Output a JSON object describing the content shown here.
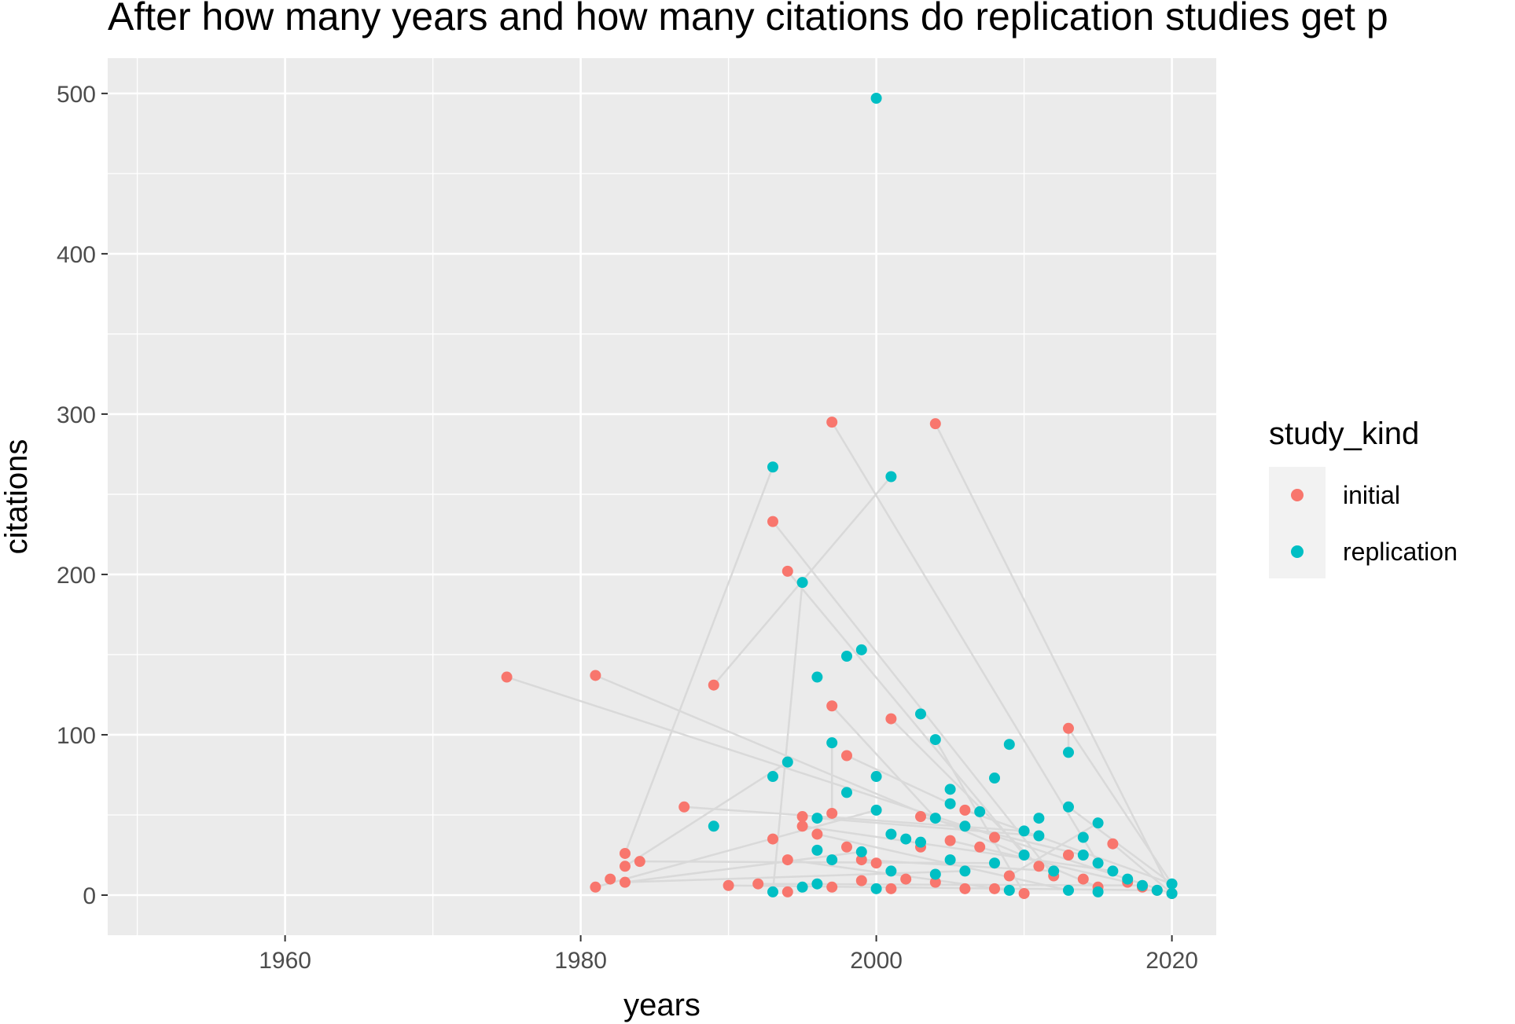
{
  "chart_data": {
    "type": "scatter",
    "title": "After how many years and how many citations do replication studies get p",
    "xlabel": "years",
    "ylabel": "citations",
    "xlim": [
      1948,
      2023
    ],
    "ylim": [
      -25,
      522
    ],
    "x_ticks": [
      1960,
      1980,
      2000,
      2020
    ],
    "y_ticks": [
      0,
      100,
      200,
      300,
      400,
      500
    ],
    "grid": true,
    "background": "#ebebeb",
    "legend": {
      "title": "study_kind",
      "position": "right",
      "entries": [
        {
          "label": "initial",
          "color": "#f8766d"
        },
        {
          "label": "replication",
          "color": "#00bfc4"
        }
      ]
    },
    "connector_color": "#d9d9d9",
    "series": [
      {
        "name": "initial",
        "color": "#f8766d",
        "points": [
          [
            1975,
            136
          ],
          [
            1981,
            137
          ],
          [
            1981,
            5
          ],
          [
            1982,
            10
          ],
          [
            1983,
            26
          ],
          [
            1983,
            18
          ],
          [
            1983,
            8
          ],
          [
            1984,
            21
          ],
          [
            1987,
            55
          ],
          [
            1989,
            131
          ],
          [
            1990,
            6
          ],
          [
            1992,
            7
          ],
          [
            1993,
            233
          ],
          [
            1993,
            35
          ],
          [
            1994,
            202
          ],
          [
            1994,
            22
          ],
          [
            1994,
            2
          ],
          [
            1995,
            49
          ],
          [
            1995,
            43
          ],
          [
            1996,
            38
          ],
          [
            1997,
            295
          ],
          [
            1997,
            118
          ],
          [
            1997,
            51
          ],
          [
            1997,
            5
          ],
          [
            1998,
            87
          ],
          [
            1998,
            30
          ],
          [
            1999,
            22
          ],
          [
            1999,
            9
          ],
          [
            2000,
            20
          ],
          [
            2001,
            110
          ],
          [
            2001,
            4
          ],
          [
            2002,
            10
          ],
          [
            2003,
            49
          ],
          [
            2003,
            30
          ],
          [
            2004,
            294
          ],
          [
            2004,
            8
          ],
          [
            2005,
            34
          ],
          [
            2006,
            53
          ],
          [
            2006,
            4
          ],
          [
            2007,
            30
          ],
          [
            2008,
            36
          ],
          [
            2008,
            4
          ],
          [
            2009,
            12
          ],
          [
            2010,
            1
          ],
          [
            2011,
            18
          ],
          [
            2012,
            12
          ],
          [
            2013,
            104
          ],
          [
            2013,
            25
          ],
          [
            2014,
            10
          ],
          [
            2015,
            5
          ],
          [
            2016,
            32
          ],
          [
            2017,
            8
          ],
          [
            2018,
            5
          ],
          [
            2019,
            3
          ],
          [
            2020,
            1
          ]
        ]
      },
      {
        "name": "replication",
        "color": "#00bfc4",
        "points": [
          [
            1989,
            43
          ],
          [
            1993,
            267
          ],
          [
            1993,
            74
          ],
          [
            1993,
            2
          ],
          [
            1994,
            83
          ],
          [
            1995,
            195
          ],
          [
            1995,
            5
          ],
          [
            1996,
            136
          ],
          [
            1996,
            48
          ],
          [
            1996,
            28
          ],
          [
            1996,
            7
          ],
          [
            1997,
            95
          ],
          [
            1997,
            22
          ],
          [
            1998,
            149
          ],
          [
            1998,
            64
          ],
          [
            1999,
            153
          ],
          [
            1999,
            27
          ],
          [
            2000,
            497
          ],
          [
            2000,
            74
          ],
          [
            2000,
            53
          ],
          [
            2000,
            4
          ],
          [
            2001,
            261
          ],
          [
            2001,
            38
          ],
          [
            2001,
            15
          ],
          [
            2002,
            35
          ],
          [
            2003,
            113
          ],
          [
            2003,
            33
          ],
          [
            2004,
            97
          ],
          [
            2004,
            48
          ],
          [
            2004,
            13
          ],
          [
            2005,
            66
          ],
          [
            2005,
            57
          ],
          [
            2005,
            22
          ],
          [
            2006,
            43
          ],
          [
            2006,
            15
          ],
          [
            2007,
            52
          ],
          [
            2008,
            73
          ],
          [
            2008,
            20
          ],
          [
            2009,
            94
          ],
          [
            2009,
            3
          ],
          [
            2010,
            40
          ],
          [
            2010,
            25
          ],
          [
            2011,
            48
          ],
          [
            2011,
            37
          ],
          [
            2012,
            15
          ],
          [
            2013,
            89
          ],
          [
            2013,
            55
          ],
          [
            2013,
            3
          ],
          [
            2014,
            36
          ],
          [
            2014,
            25
          ],
          [
            2015,
            45
          ],
          [
            2015,
            20
          ],
          [
            2015,
            2
          ],
          [
            2016,
            15
          ],
          [
            2017,
            10
          ],
          [
            2018,
            6
          ],
          [
            2019,
            3
          ],
          [
            2020,
            7
          ],
          [
            2020,
            1
          ]
        ]
      }
    ],
    "links": [
      [
        [
          1975,
          136
        ],
        [
          2020,
          1
        ]
      ],
      [
        [
          1981,
          137
        ],
        [
          2015,
          5
        ]
      ],
      [
        [
          1983,
          26
        ],
        [
          1993,
          267
        ]
      ],
      [
        [
          1989,
          131
        ],
        [
          2001,
          261
        ]
      ],
      [
        [
          1993,
          233
        ],
        [
          2012,
          12
        ]
      ],
      [
        [
          1994,
          202
        ],
        [
          2010,
          25
        ]
      ],
      [
        [
          1997,
          295
        ],
        [
          2015,
          20
        ]
      ],
      [
        [
          2004,
          294
        ],
        [
          2020,
          1
        ]
      ],
      [
        [
          1995,
          195
        ],
        [
          1993,
          2
        ]
      ],
      [
        [
          1997,
          118
        ],
        [
          2004,
          48
        ]
      ],
      [
        [
          2001,
          110
        ],
        [
          2011,
          18
        ]
      ],
      [
        [
          1997,
          51
        ],
        [
          1997,
          95
        ]
      ],
      [
        [
          1983,
          18
        ],
        [
          1994,
          83
        ]
      ],
      [
        [
          1981,
          5
        ],
        [
          2000,
          53
        ]
      ],
      [
        [
          1984,
          21
        ],
        [
          2008,
          20
        ]
      ],
      [
        [
          1983,
          8
        ],
        [
          2006,
          15
        ]
      ],
      [
        [
          1987,
          55
        ],
        [
          2010,
          40
        ]
      ],
      [
        [
          2013,
          104
        ],
        [
          2013,
          89
        ]
      ],
      [
        [
          2013,
          104
        ],
        [
          2020,
          7
        ]
      ],
      [
        [
          2013,
          55
        ],
        [
          2020,
          7
        ]
      ],
      [
        [
          1998,
          87
        ],
        [
          2005,
          57
        ]
      ],
      [
        [
          2004,
          97
        ],
        [
          2010,
          1
        ]
      ],
      [
        [
          1996,
          48
        ],
        [
          2011,
          37
        ]
      ],
      [
        [
          1992,
          7
        ],
        [
          2018,
          6
        ]
      ],
      [
        [
          1990,
          6
        ],
        [
          2019,
          3
        ]
      ],
      [
        [
          2016,
          32
        ],
        [
          2020,
          1
        ]
      ],
      [
        [
          1994,
          22
        ],
        [
          2009,
          3
        ]
      ],
      [
        [
          2003,
          49
        ],
        [
          2014,
          25
        ]
      ],
      [
        [
          2005,
          34
        ],
        [
          2017,
          8
        ]
      ],
      [
        [
          1999,
          22
        ],
        [
          2012,
          15
        ]
      ],
      [
        [
          1995,
          43
        ],
        [
          2016,
          15
        ]
      ],
      [
        [
          2006,
          53
        ],
        [
          2020,
          7
        ]
      ],
      [
        [
          1983,
          8
        ],
        [
          1999,
          27
        ]
      ],
      [
        [
          1996,
          38
        ],
        [
          2013,
          3
        ]
      ],
      [
        [
          2009,
          12
        ],
        [
          2015,
          45
        ]
      ]
    ]
  }
}
